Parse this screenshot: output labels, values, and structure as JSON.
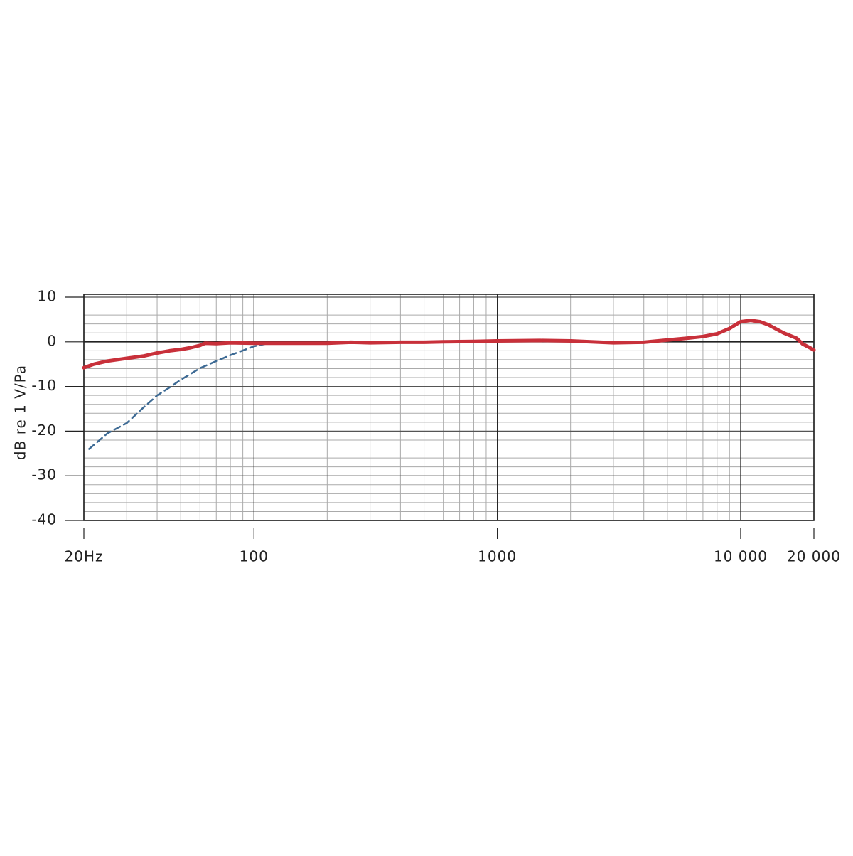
{
  "chart_data": {
    "type": "line",
    "y_label": "dB re 1 V/Pa",
    "x_log_scale": true,
    "xlim": [
      20,
      20000
    ],
    "ylim": [
      -40,
      10
    ],
    "xticks": [
      {
        "value": 20,
        "label": "20Hz"
      },
      100,
      1000,
      {
        "value": 10000,
        "label": "10 000"
      },
      {
        "value": 20000,
        "label": "20 000"
      }
    ],
    "yticks": [
      10,
      0,
      -10,
      -20,
      -30,
      -40
    ],
    "grid": true,
    "minor_grid_x": [
      30,
      40,
      50,
      60,
      70,
      80,
      90,
      200,
      300,
      400,
      500,
      600,
      700,
      800,
      900,
      2000,
      3000,
      4000,
      5000,
      6000,
      7000,
      8000,
      9000
    ],
    "minor_grid_y": [
      8,
      6,
      4,
      2,
      -2,
      -4,
      -6,
      -8,
      -12,
      -14,
      -16,
      -18,
      -22,
      -24,
      -26,
      -28,
      -32,
      -34,
      -36,
      -38
    ],
    "series": [
      {
        "color": "#c8303a",
        "style": "solid",
        "x": [
          20,
          22,
          25,
          30,
          35,
          40,
          45,
          50,
          55,
          60,
          63,
          70,
          80,
          100,
          120,
          150,
          200,
          250,
          300,
          400,
          500,
          600,
          800,
          1000,
          1500,
          2000,
          3000,
          4000,
          5000,
          6000,
          7000,
          8000,
          9000,
          10000,
          11000,
          12000,
          13000,
          15000,
          17000,
          18000,
          20000
        ],
        "values": [
          -5.8,
          -5,
          -4.3,
          -3.7,
          -3.2,
          -2.5,
          -2,
          -1.7,
          -1.3,
          -0.8,
          -0.3,
          -0.4,
          -0.2,
          -0.3,
          -0.3,
          -0.3,
          -0.3,
          -0.1,
          -0.2,
          -0.1,
          -0.1,
          0,
          0.1,
          0.2,
          0.3,
          0.2,
          -0.2,
          -0.1,
          0.4,
          0.8,
          1.2,
          1.8,
          3,
          4.5,
          4.8,
          4.5,
          3.8,
          2,
          0.8,
          -0.5,
          -1.8
        ]
      },
      {
        "color": "#3d6a94",
        "style": "dashed",
        "x": [
          21,
          25,
          30,
          35,
          40,
          45,
          50,
          60,
          70,
          80,
          100,
          115
        ],
        "values": [
          -24,
          -20.5,
          -18.2,
          -14.8,
          -12,
          -10.2,
          -8.5,
          -5.9,
          -4.3,
          -3,
          -1,
          -0.3
        ]
      }
    ]
  }
}
